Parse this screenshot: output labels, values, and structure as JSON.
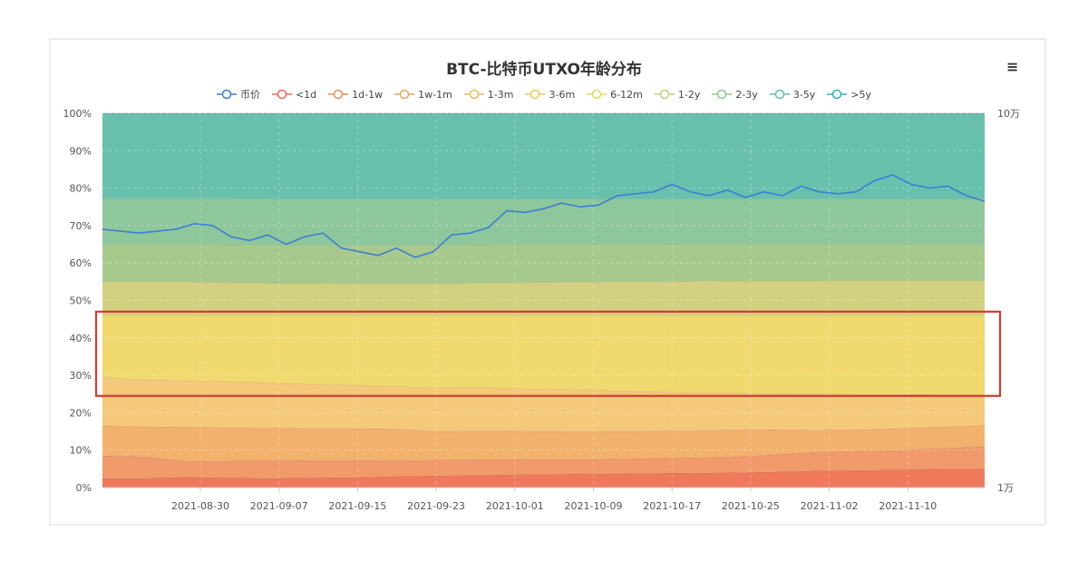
{
  "chart_data": {
    "type": "area",
    "stacked": true,
    "stack_mode": "percent",
    "title": "BTC-比特币UTXO年龄分布",
    "x_tick_labels": [
      "2021-08-30",
      "2021-09-07",
      "2021-09-15",
      "2021-09-23",
      "2021-10-01",
      "2021-10-09",
      "2021-10-17",
      "2021-10-25",
      "2021-11-02",
      "2021-11-10"
    ],
    "y_left_ticks": [
      "0%",
      "10%",
      "20%",
      "30%",
      "40%",
      "50%",
      "60%",
      "70%",
      "80%",
      "90%",
      "100%"
    ],
    "y_right_ticks": [
      "1万",
      "10万"
    ],
    "ylim_left": [
      0,
      100
    ],
    "ylim_right": [
      10000,
      100000
    ],
    "y_right_scale": "log",
    "grid": true,
    "legend_position": "top",
    "x_start": "2021-08-23",
    "x_end": "2021-11-18",
    "boundary_series": [
      {
        "name": "<1d",
        "color": "#ee7a5b",
        "values": [
          2.5,
          2.5,
          2.8,
          2.6,
          2.5,
          2.6,
          2.7,
          3.0,
          3.2,
          3.3,
          3.5,
          3.6,
          3.7,
          3.8,
          3.9,
          4.0,
          4.2,
          4.5,
          4.6,
          4.8,
          5.0,
          5.0
        ]
      },
      {
        "name": "1d-1w",
        "color": "#f19a6c",
        "values": [
          8.5,
          8.3,
          7.0,
          7.1,
          7.2,
          7.3,
          7.3,
          7.2,
          7.4,
          7.5,
          7.6,
          7.5,
          7.6,
          7.8,
          8.0,
          8.2,
          8.8,
          9.5,
          9.8,
          10.0,
          10.5,
          11.0
        ]
      },
      {
        "name": "1w-1m",
        "color": "#f2b16c",
        "values": [
          16.5,
          16.3,
          16.2,
          16.0,
          15.9,
          15.8,
          15.8,
          15.7,
          15.0,
          15.2,
          15.1,
          15.0,
          15.0,
          15.1,
          15.2,
          15.4,
          15.5,
          15.3,
          15.5,
          15.8,
          16.2,
          16.6
        ]
      },
      {
        "name": "1-3m",
        "color": "#f4c97a",
        "values": [
          29.5,
          28.8,
          28.6,
          28.4,
          28.0,
          27.6,
          27.4,
          27.1,
          26.7,
          26.8,
          26.5,
          26.3,
          26.0,
          25.6,
          25.4,
          25.3,
          25.2,
          25.1,
          25.0,
          25.0,
          24.9,
          24.8
        ]
      },
      {
        "name": "3-6m",
        "color": "#f0d96f",
        "values": [
          46.0,
          46.0,
          46.0,
          46.0,
          46.0,
          46.0,
          46.0,
          46.0,
          46.0,
          46.0,
          46.0,
          46.0,
          46.0,
          46.0,
          46.0,
          46.0,
          46.0,
          46.0,
          46.0,
          46.0,
          46.0,
          46.0
        ]
      },
      {
        "name": "6-12m",
        "color": "#d4d081",
        "values": [
          55.0,
          55.0,
          55.0,
          54.8,
          54.6,
          54.6,
          54.5,
          54.5,
          54.5,
          54.7,
          54.8,
          54.9,
          55.0,
          55.0,
          55.1,
          55.2,
          55.2,
          55.2,
          55.3,
          55.3,
          55.3,
          55.3
        ]
      },
      {
        "name": "1-2y",
        "color": "#a8c98d",
        "values": [
          65.0,
          65.0,
          65.0,
          64.9,
          64.8,
          64.8,
          64.8,
          64.8,
          64.8,
          64.9,
          65.0,
          65.0,
          65.0,
          65.0,
          65.0,
          65.0,
          65.0,
          65.0,
          65.0,
          65.0,
          65.0,
          65.0
        ]
      },
      {
        "name": "2-3y",
        "color": "#8fc79c",
        "values": [
          77.3,
          77.3,
          77.3,
          77.3,
          77.2,
          77.2,
          77.2,
          77.2,
          77.2,
          77.2,
          77.2,
          77.2,
          77.2,
          77.2,
          77.2,
          77.2,
          77.2,
          77.2,
          77.2,
          77.2,
          77.2,
          77.2
        ]
      },
      {
        "name": "3-5y",
        "color": "#69c0ad",
        "values": [
          100,
          100,
          100,
          100,
          100,
          100,
          100,
          100,
          100,
          100,
          100,
          100,
          100,
          100,
          100,
          100,
          100,
          100,
          100,
          100,
          100,
          100
        ]
      },
      {
        "name": ">5y",
        "color": "#3fb8bf",
        "values": [
          100,
          100,
          100,
          100,
          100,
          100,
          100,
          100,
          100,
          100,
          100,
          100,
          100,
          100,
          100,
          100,
          100,
          100,
          100,
          100,
          100,
          100
        ]
      }
    ],
    "price_series": {
      "name": "币价",
      "color": "#3a7fd5",
      "values": [
        69,
        68.5,
        68,
        68.5,
        69,
        70.5,
        70,
        67,
        66,
        67.5,
        65,
        67,
        68,
        64,
        63,
        62,
        64,
        61.5,
        63,
        67.5,
        68,
        69.5,
        74,
        73.5,
        74.5,
        76,
        75,
        75.5,
        78,
        78.5,
        79,
        81,
        79,
        78,
        79.5,
        77.5,
        79,
        78,
        80.5,
        79,
        78.5,
        79,
        82,
        83.5,
        81,
        80,
        80.5,
        78,
        76.5
      ]
    },
    "highlight_box": {
      "y_from_pct": 24.5,
      "y_to_pct": 47.0,
      "color": "#d93a30"
    }
  },
  "legend": [
    {
      "name": "币价",
      "color": "#3a7fd5"
    },
    {
      "name": "<1d",
      "color": "#ee6b4d"
    },
    {
      "name": "1d-1w",
      "color": "#ef8c5a"
    },
    {
      "name": "1w-1m",
      "color": "#f0a05c"
    },
    {
      "name": "1-3m",
      "color": "#f1b760"
    },
    {
      "name": "3-6m",
      "color": "#eccb5c"
    },
    {
      "name": "6-12m",
      "color": "#e6d766"
    },
    {
      "name": "1-2y",
      "color": "#bcd27a"
    },
    {
      "name": "2-3y",
      "color": "#8ec98e"
    },
    {
      "name": "3-5y",
      "color": "#5fc0a6"
    },
    {
      "name": ">5y",
      "color": "#2fb0bd"
    }
  ],
  "menu_icon": "hamburger-menu-icon",
  "menu_glyph": "≡"
}
